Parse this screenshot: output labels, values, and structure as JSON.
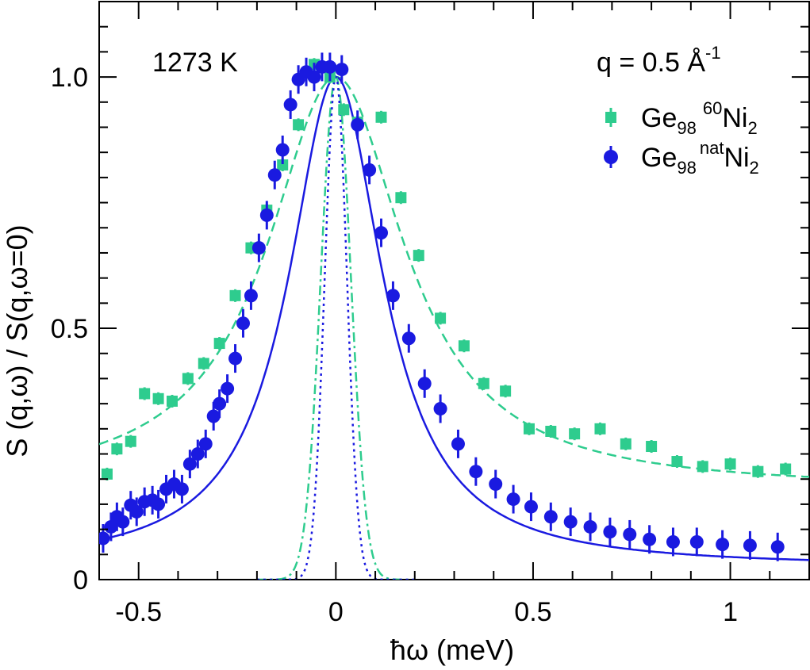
{
  "chart_data": {
    "type": "scatter",
    "title": "",
    "xlabel": "ħω (meV)",
    "ylabel": "S (q,ω) / S(q,ω=0)",
    "xlim": [
      -0.6,
      1.2
    ],
    "ylim": [
      0,
      1.15
    ],
    "x_ticks": [
      {
        "value": -0.5,
        "label": "-0.5"
      },
      {
        "value": 0,
        "label": "0"
      },
      {
        "value": 0.5,
        "label": "0.5"
      },
      {
        "value": 1,
        "label": "1"
      }
    ],
    "y_ticks": [
      {
        "value": 0,
        "label": "0"
      },
      {
        "value": 0.5,
        "label": "0.5"
      },
      {
        "value": 1.0,
        "label": "1.0"
      }
    ],
    "grid": false,
    "legend_position": "top-right",
    "annotations": {
      "temperature": "1273 K",
      "q_base": "q = 0.5 Å",
      "q_exp": "-1"
    },
    "series": [
      {
        "legend_base": "Ge",
        "legend_sub": "98",
        "legend_sup": "60",
        "legend_end": "Ni",
        "legend_end_sub": "2",
        "color": "#2ecc8e",
        "marker": "square",
        "x": [
          -0.58,
          -0.555,
          -0.52,
          -0.485,
          -0.45,
          -0.415,
          -0.375,
          -0.335,
          -0.295,
          -0.255,
          -0.215,
          -0.175,
          -0.135,
          -0.095,
          -0.055,
          -0.015,
          0.02,
          0.055,
          0.115,
          0.165,
          0.21,
          0.265,
          0.325,
          0.375,
          0.43,
          0.49,
          0.545,
          0.605,
          0.67,
          0.735,
          0.8,
          0.865,
          0.93,
          1.0,
          1.07,
          1.14
        ],
        "y": [
          0.21,
          0.26,
          0.275,
          0.37,
          0.36,
          0.355,
          0.4,
          0.43,
          0.47,
          0.565,
          0.66,
          0.735,
          0.825,
          0.905,
          1.025,
          1.0,
          0.935,
          0.91,
          0.92,
          0.76,
          0.645,
          0.52,
          0.465,
          0.39,
          0.375,
          0.3,
          0.295,
          0.29,
          0.3,
          0.27,
          0.265,
          0.235,
          0.225,
          0.23,
          0.215,
          0.22
        ]
      },
      {
        "legend_base": "Ge",
        "legend_sub": "98",
        "legend_sup": "nat",
        "legend_end": "Ni",
        "legend_end_sub": "2",
        "color": "#1a1ae0",
        "marker": "circle",
        "x": [
          -0.59,
          -0.57,
          -0.555,
          -0.54,
          -0.52,
          -0.505,
          -0.485,
          -0.465,
          -0.45,
          -0.43,
          -0.41,
          -0.39,
          -0.37,
          -0.35,
          -0.33,
          -0.31,
          -0.295,
          -0.275,
          -0.255,
          -0.235,
          -0.215,
          -0.195,
          -0.175,
          -0.155,
          -0.135,
          -0.115,
          -0.095,
          -0.075,
          -0.055,
          -0.035,
          -0.015,
          0.015,
          0.055,
          0.085,
          0.115,
          0.145,
          0.185,
          0.225,
          0.265,
          0.31,
          0.355,
          0.405,
          0.45,
          0.495,
          0.545,
          0.595,
          0.645,
          0.695,
          0.745,
          0.795,
          0.855,
          0.915,
          0.98,
          1.05,
          1.12
        ],
        "y": [
          0.082,
          0.105,
          0.125,
          0.115,
          0.148,
          0.135,
          0.155,
          0.158,
          0.15,
          0.18,
          0.19,
          0.18,
          0.23,
          0.25,
          0.27,
          0.325,
          0.35,
          0.38,
          0.44,
          0.51,
          0.565,
          0.66,
          0.725,
          0.805,
          0.855,
          0.945,
          0.995,
          1.01,
          1.0,
          1.02,
          1.02,
          1.015,
          0.905,
          0.815,
          0.69,
          0.565,
          0.48,
          0.39,
          0.34,
          0.27,
          0.215,
          0.19,
          0.16,
          0.145,
          0.125,
          0.115,
          0.105,
          0.095,
          0.09,
          0.08,
          0.075,
          0.075,
          0.07,
          0.068,
          0.065
        ]
      }
    ]
  }
}
